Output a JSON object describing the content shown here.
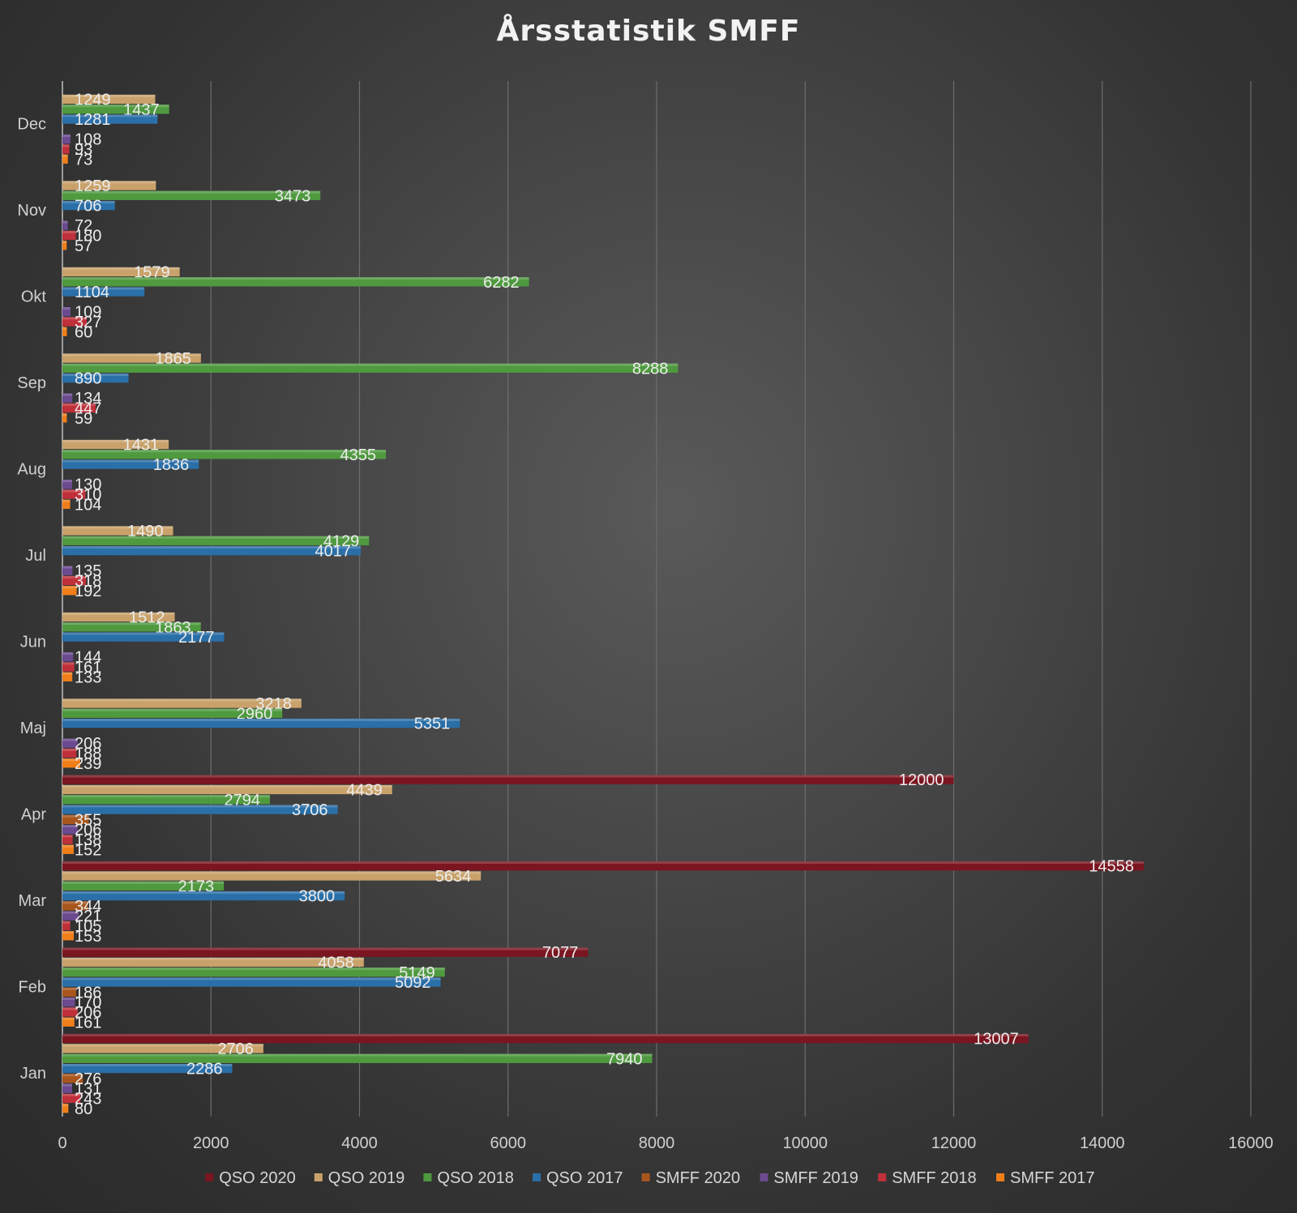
{
  "chart_data": {
    "type": "bar",
    "orientation": "horizontal",
    "title": "Årsstatistik SMFF",
    "xlabel": "",
    "ylabel": "",
    "xlim": [
      0,
      16000
    ],
    "x_ticks": [
      0,
      2000,
      4000,
      6000,
      8000,
      10000,
      12000,
      14000,
      16000
    ],
    "grid": "vertical",
    "legend_position": "bottom",
    "categories": [
      "Jan",
      "Feb",
      "Mar",
      "Apr",
      "Maj",
      "Jun",
      "Jul",
      "Aug",
      "Sep",
      "Okt",
      "Nov",
      "Dec"
    ],
    "series": [
      {
        "name": "QSO 2020",
        "color": "#7b1520",
        "values": [
          13007,
          7077,
          14558,
          12000,
          null,
          null,
          null,
          null,
          null,
          null,
          null,
          null
        ]
      },
      {
        "name": "QSO 2019",
        "color": "#c9a26b",
        "values": [
          2706,
          4058,
          5634,
          4439,
          3218,
          1512,
          1490,
          1431,
          1865,
          1579,
          1259,
          1249
        ]
      },
      {
        "name": "QSO 2018",
        "color": "#4f9a3f",
        "values": [
          7940,
          5149,
          2173,
          2794,
          2960,
          1863,
          4129,
          4355,
          8288,
          6282,
          3473,
          1437
        ]
      },
      {
        "name": "QSO 2017",
        "color": "#2a6fa8",
        "values": [
          2286,
          5092,
          3800,
          3706,
          5351,
          2177,
          4017,
          1836,
          890,
          1104,
          706,
          1281
        ]
      },
      {
        "name": "SMFF 2020",
        "color": "#a8561e",
        "values": [
          276,
          186,
          344,
          355,
          null,
          null,
          null,
          null,
          null,
          null,
          null,
          null
        ]
      },
      {
        "name": "SMFF 2019",
        "color": "#6b4a8f",
        "values": [
          131,
          170,
          221,
          206,
          206,
          144,
          135,
          130,
          134,
          109,
          72,
          108
        ]
      },
      {
        "name": "SMFF 2018",
        "color": "#c0303a",
        "values": [
          243,
          206,
          105,
          138,
          188,
          161,
          318,
          310,
          447,
          327,
          180,
          93
        ]
      },
      {
        "name": "SMFF 2017",
        "color": "#f07f1a",
        "values": [
          80,
          161,
          153,
          152,
          239,
          133,
          192,
          104,
          59,
          60,
          57,
          73
        ]
      }
    ]
  }
}
